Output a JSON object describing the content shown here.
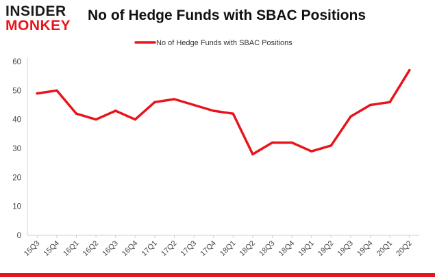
{
  "brand": {
    "line1": "INSIDER",
    "line2": "MONKEY",
    "colors": {
      "dark": "#1a1a1a",
      "accent": "#e8141c"
    }
  },
  "chart_data": {
    "type": "line",
    "title": "No of Hedge Funds with SBAC Positions",
    "xlabel": "",
    "ylabel": "",
    "categories": [
      "15Q3",
      "15Q4",
      "16Q1",
      "16Q2",
      "16Q3",
      "16Q4",
      "17Q1",
      "17Q2",
      "17Q3",
      "17Q4",
      "18Q1",
      "18Q2",
      "18Q3",
      "18Q4",
      "19Q1",
      "19Q2",
      "19Q3",
      "19Q4",
      "20Q1",
      "20Q2"
    ],
    "series": [
      {
        "name": "No of Hedge Funds with SBAC Positions",
        "color": "#e8141c",
        "values": [
          49,
          50,
          42,
          40,
          43,
          40,
          46,
          47,
          45,
          43,
          42,
          28,
          32,
          32,
          29,
          31,
          41,
          45,
          46,
          57
        ]
      }
    ],
    "ylim": [
      0,
      60
    ],
    "yticks": [
      0,
      10,
      20,
      30,
      40,
      50,
      60
    ],
    "grid": false,
    "legend": "top-center"
  }
}
